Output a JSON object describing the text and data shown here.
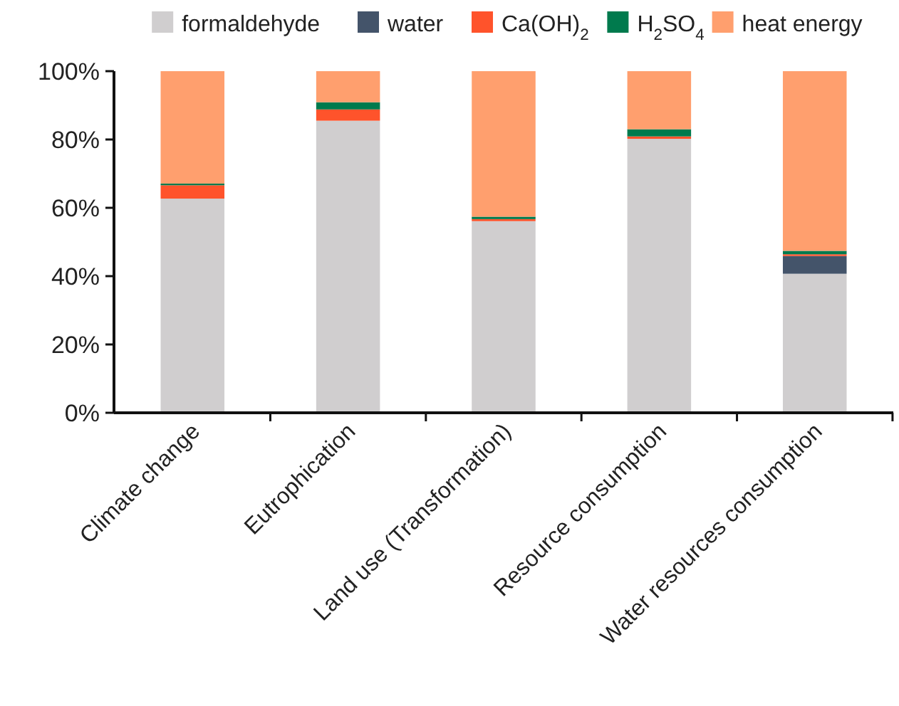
{
  "chart_data": {
    "type": "bar",
    "stacked": true,
    "categories": [
      "Climate change",
      "Eutrophication",
      "Land use (Transformation)",
      "Resource consumption",
      "Water resources consumption"
    ],
    "series": [
      {
        "name": "formaldehyde",
        "color": "#d0cecf",
        "values": [
          62.7,
          85.5,
          56.1,
          80.2,
          40.7
        ]
      },
      {
        "name": "water",
        "color": "#44546a",
        "values": [
          0,
          0,
          0,
          0,
          5.2
        ]
      },
      {
        "name": "Ca(OH)$_{2}$",
        "color": "#ff532b",
        "values": [
          3.9,
          3.3,
          0.6,
          0.7,
          0.5
        ]
      },
      {
        "name": "H$_{2}$SO$_{4}$",
        "color": "#007a4d",
        "values": [
          0.5,
          2.1,
          0.7,
          2.1,
          1.0
        ]
      },
      {
        "name": "heat energy",
        "color": "#ff9f6e",
        "values": [
          32.9,
          9.1,
          42.6,
          17.0,
          52.6
        ]
      }
    ],
    "ylim": [
      0,
      100
    ],
    "yticks": [
      {
        "value": 0,
        "label": "0%"
      },
      {
        "value": 20,
        "label": "20%"
      },
      {
        "value": 40,
        "label": "40%"
      },
      {
        "value": 60,
        "label": "60%"
      },
      {
        "value": 80,
        "label": "80%"
      },
      {
        "value": 100,
        "label": "100%"
      }
    ],
    "grid": false,
    "legend": "top"
  }
}
